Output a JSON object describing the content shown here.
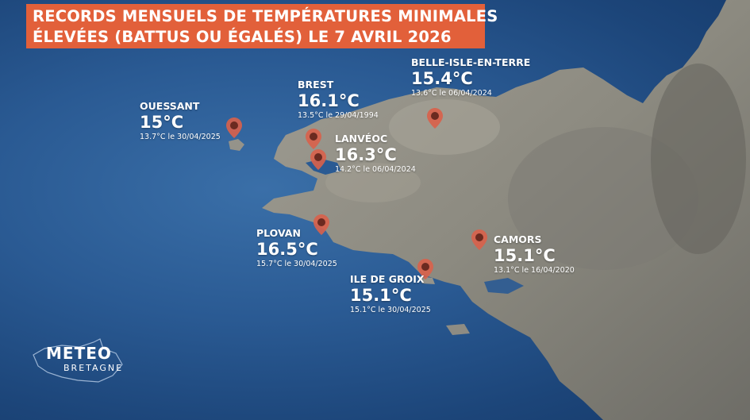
{
  "title": {
    "line1": "RECORDS MENSUELS DE TEMPÉRATURES MINIMALES",
    "line2": "ÉLEVÉES (BATTUS OU ÉGALÉS) LE 7 AVRIL 2026"
  },
  "colors": {
    "title_bg": "#e2603a",
    "sea": "#2a5a93",
    "land": "#8d8a80",
    "pin": "#d9604a"
  },
  "stations": [
    {
      "name": "OUESSANT",
      "temp": "15°C",
      "prev": "13.7°C le 30/04/2025"
    },
    {
      "name": "BREST",
      "temp": "16.1°C",
      "prev": "13.5°C le 29/04/1994"
    },
    {
      "name": "LANVÉOC",
      "temp": "16.3°C",
      "prev": "14.2°C le 06/04/2024"
    },
    {
      "name": "BELLE-ISLE-EN-TERRE",
      "temp": "15.4°C",
      "prev": "13.6°C le 06/04/2024"
    },
    {
      "name": "PLOVAN",
      "temp": "16.5°C",
      "prev": "15.7°C le 30/04/2025"
    },
    {
      "name": "CAMORS",
      "temp": "15.1°C",
      "prev": "13.1°C le 16/04/2020"
    },
    {
      "name": "ILE DE GROIX",
      "temp": "15.1°C",
      "prev": "15.1°C le 30/04/2025"
    }
  ],
  "logo": {
    "line1": "METEO",
    "line2": "BRETAGNE"
  },
  "icons": {
    "marker": "map-pin-icon"
  }
}
